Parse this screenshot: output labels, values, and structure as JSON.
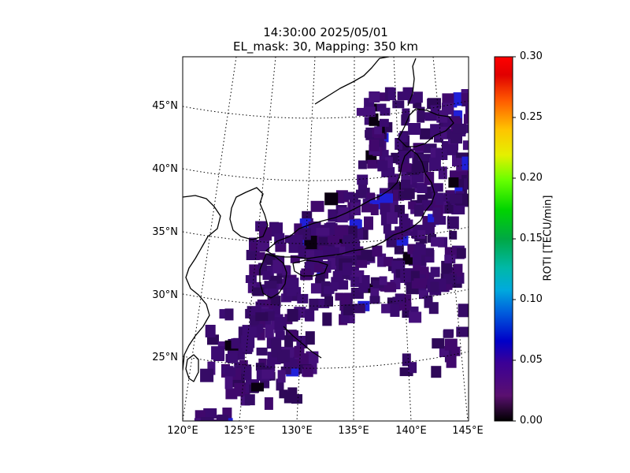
{
  "title_line1": "14:30:00 2025/05/01",
  "title_line2": "EL_mask: 30, Mapping: 350 km",
  "lat_labels": [
    "45°N",
    "40°N",
    "35°N",
    "30°N",
    "25°N"
  ],
  "lon_labels": [
    "120°E",
    "125°E",
    "130°E",
    "135°E",
    "140°E",
    "145°E"
  ],
  "colorbar": {
    "label": "ROTI [TECU/min]",
    "ticks": [
      "0.00",
      "0.05",
      "0.10",
      "0.15",
      "0.20",
      "0.25",
      "0.30"
    ],
    "min": 0.0,
    "max": 0.3,
    "colormap": "nipy_spectral"
  },
  "map_extent": {
    "lon_min": 120,
    "lon_max": 145,
    "lat_min": 20,
    "lat_max": 49
  },
  "colors": {
    "coastline": "#000000",
    "gridline": "#000000",
    "dominant_roti": "#3a0a6e",
    "elevated_roti": "#2020d8"
  }
}
